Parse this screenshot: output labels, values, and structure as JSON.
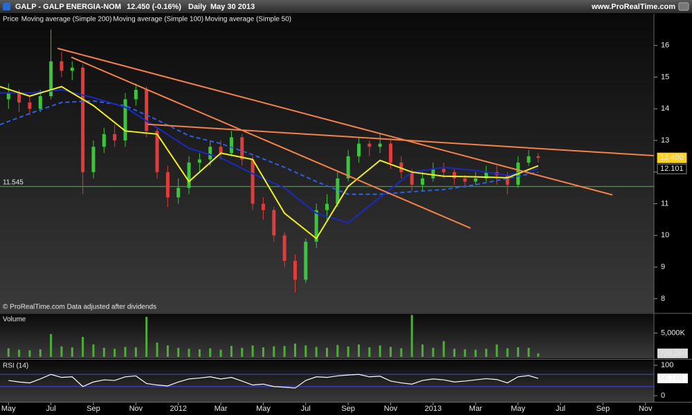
{
  "header": {
    "symbol": "GALP - GALP ENERGIA-NOM",
    "quote": "12.450 (-0.16%)",
    "period": "Daily",
    "date": "May 30 2013",
    "site": "www.ProRealTime.com"
  },
  "chart_data": [
    {
      "type": "candlestick",
      "legend_label": "Price",
      "note": "© ProRealTime.com  Data adjusted after dividends",
      "x": [
        0,
        0.5,
        1,
        1.5,
        2,
        2.5,
        3,
        3.5,
        4,
        4.5,
        5,
        5.5,
        6,
        6.5,
        7,
        7.5,
        8,
        8.5,
        9,
        9.5,
        10,
        10.5,
        11,
        11.5,
        12,
        12.5,
        13,
        13.5,
        14,
        14.5,
        15,
        15.5,
        16,
        16.5,
        17,
        17.5,
        18,
        18.5,
        19,
        19.5,
        20,
        20.5,
        21,
        21.5,
        22,
        22.5,
        23,
        23.5,
        24,
        24.5,
        24.95
      ],
      "open": [
        14.3,
        14.5,
        14.2,
        14.0,
        14.4,
        15.5,
        15.2,
        15.3,
        12.0,
        12.8,
        13.2,
        13.0,
        14.3,
        14.6,
        13.3,
        12.0,
        11.2,
        11.5,
        12.3,
        12.4,
        12.8,
        12.6,
        13.1,
        12.4,
        11.0,
        10.8,
        10.0,
        9.2,
        8.6,
        9.8,
        10.8,
        11.0,
        11.8,
        12.5,
        12.9,
        12.8,
        12.9,
        12.3,
        12.0,
        11.6,
        11.8,
        12.1,
        12.0,
        11.8,
        11.7,
        11.8,
        12.0,
        11.9,
        11.6,
        12.3,
        12.5
      ],
      "high": [
        14.8,
        14.6,
        14.4,
        14.6,
        16.5,
        15.8,
        15.5,
        15.4,
        13.0,
        13.4,
        13.5,
        14.5,
        14.8,
        14.7,
        13.4,
        12.2,
        11.8,
        12.5,
        12.6,
        13.0,
        13.0,
        13.3,
        13.2,
        12.5,
        11.2,
        10.9,
        10.1,
        9.4,
        9.9,
        11.0,
        11.3,
        12.0,
        12.7,
        13.1,
        13.0,
        13.2,
        13.0,
        12.5,
        12.1,
        12.0,
        12.3,
        12.3,
        12.1,
        11.9,
        12.0,
        12.2,
        12.2,
        12.0,
        12.5,
        12.7,
        12.6
      ],
      "low": [
        14.0,
        13.9,
        13.8,
        13.9,
        14.3,
        15.0,
        14.9,
        11.3,
        11.8,
        12.6,
        12.8,
        12.8,
        14.1,
        13.1,
        11.8,
        10.9,
        11.0,
        11.3,
        12.0,
        12.2,
        12.4,
        12.5,
        12.2,
        10.8,
        10.5,
        9.8,
        9.0,
        8.2,
        8.5,
        9.6,
        10.5,
        10.9,
        11.7,
        12.3,
        12.5,
        12.6,
        12.1,
        11.8,
        11.4,
        11.4,
        11.7,
        11.8,
        11.6,
        11.5,
        11.6,
        11.7,
        11.6,
        11.3,
        11.5,
        12.2,
        12.3
      ],
      "close": [
        14.5,
        14.2,
        14.0,
        14.4,
        15.5,
        15.2,
        15.3,
        12.0,
        12.8,
        13.2,
        13.0,
        14.3,
        14.6,
        13.3,
        12.0,
        11.2,
        11.5,
        12.3,
        12.4,
        12.8,
        12.6,
        13.1,
        12.4,
        11.0,
        10.8,
        10.0,
        9.2,
        8.6,
        9.8,
        10.8,
        11.0,
        11.8,
        12.5,
        12.9,
        12.8,
        12.9,
        12.3,
        12.0,
        11.6,
        11.8,
        12.1,
        12.0,
        11.8,
        11.7,
        11.8,
        12.0,
        11.9,
        11.6,
        12.3,
        12.5,
        12.45
      ],
      "up_color": "#3cc43c",
      "down_color": "#e03c3c",
      "series": [
        {
          "name": "Moving average (Simple 200)",
          "color": "#2d5fe8",
          "dashed": true,
          "x": [
            -0.4,
            1,
            2.5,
            4,
            5.5,
            7,
            8.5,
            10,
            11.5,
            13,
            14.5,
            16,
            17.5,
            19,
            20.5,
            22,
            23.5,
            24.95
          ],
          "values": [
            13.5,
            13.85,
            14.2,
            14.25,
            14.1,
            13.65,
            13.15,
            12.9,
            12.55,
            12.15,
            11.7,
            11.3,
            11.3,
            11.38,
            11.45,
            11.6,
            11.8,
            12.0
          ]
        },
        {
          "name": "Moving average (Simple 100)",
          "color": "#1a2ac0",
          "dashed": false,
          "x": [
            -0.4,
            1,
            2.5,
            4,
            5.5,
            7,
            8.5,
            10,
            11.5,
            13,
            14.5,
            16,
            17.5,
            19,
            20.5,
            22,
            23.5,
            24.95
          ],
          "values": [
            14.5,
            14.5,
            14.6,
            14.35,
            14.05,
            13.4,
            12.75,
            12.45,
            11.95,
            11.5,
            10.7,
            10.4,
            11.2,
            12.0,
            12.15,
            12.05,
            11.9,
            12.1
          ]
        },
        {
          "name": "Moving average (Simple 50)",
          "color": "#f0f020",
          "dashed": false,
          "x": [
            -0.4,
            1,
            2.5,
            4,
            5.5,
            7,
            8.5,
            10,
            11.5,
            13,
            14.5,
            16,
            17.5,
            19,
            20.5,
            22,
            23.5,
            24.95
          ],
          "values": [
            14.7,
            14.4,
            14.7,
            14.1,
            13.3,
            13.2,
            11.7,
            12.6,
            12.4,
            10.7,
            9.9,
            11.55,
            12.37,
            12.0,
            11.87,
            11.85,
            11.82,
            12.2
          ]
        }
      ],
      "trendline_color": "#f5824a",
      "trendlines": [
        {
          "x": [
            2.31,
            28.44
          ],
          "y": [
            15.91,
            11.28
          ]
        },
        {
          "x": [
            2.96,
            21.76
          ],
          "y": [
            15.63,
            10.23
          ]
        },
        {
          "x": [
            6.55,
            30.39
          ],
          "y": [
            13.51,
            12.52
          ]
        }
      ],
      "hline": {
        "value": 11.545,
        "color": "#20b020"
      },
      "last_price": {
        "value": 12.45,
        "label": "12.450"
      },
      "ma_last": {
        "value": 12.101,
        "label": "12.101"
      },
      "xlim": [
        -0.4,
        30.4
      ],
      "ylim": [
        7.56,
        17.0
      ],
      "yticks": [
        8,
        9,
        10,
        11,
        12,
        13,
        14,
        15,
        16
      ]
    },
    {
      "type": "bar",
      "title": "Volume",
      "color": "#4fae3a",
      "x": [
        0,
        0.5,
        1,
        1.5,
        2,
        2.5,
        3,
        3.5,
        4,
        4.5,
        5,
        5.5,
        6,
        6.5,
        7,
        7.5,
        8,
        8.5,
        9,
        9.5,
        10,
        10.5,
        11,
        11.5,
        12,
        12.5,
        13,
        13.5,
        14,
        14.5,
        15,
        15.5,
        16,
        16.5,
        17,
        17.5,
        18,
        18.5,
        19,
        19.5,
        20,
        20.5,
        21,
        21.5,
        22,
        22.5,
        23,
        23.5,
        24,
        24.5,
        24.95
      ],
      "values": [
        1800000,
        1500000,
        1400000,
        1600000,
        4800000,
        2200000,
        2000000,
        4200000,
        2600000,
        1900000,
        1700000,
        2100000,
        2000000,
        8400000,
        3000000,
        2400000,
        1900000,
        1700000,
        1600000,
        1800000,
        1500000,
        2300000,
        1900000,
        2400000,
        2000000,
        2200000,
        2300000,
        2800000,
        2400000,
        2100000,
        1900000,
        2500000,
        2200000,
        2600000,
        2000000,
        2400000,
        2100000,
        1800000,
        8800000,
        2600000,
        1900000,
        3300000,
        1700000,
        1600000,
        1500000,
        1700000,
        2600000,
        1800000,
        2000000,
        1900000,
        738266
      ],
      "last": {
        "value": 738266,
        "label": "738,266"
      },
      "xlim": [
        -0.4,
        30.4
      ],
      "ylim": [
        0,
        9000000
      ],
      "yticks": [
        {
          "value": 5000000,
          "label": "5,000K"
        }
      ]
    },
    {
      "type": "line",
      "title": "RSI (14)",
      "color": "#ffffff",
      "level_color": "#3a48ff",
      "x": [
        0,
        0.5,
        1,
        1.5,
        2,
        2.5,
        3,
        3.5,
        4,
        4.5,
        5,
        5.5,
        6,
        6.5,
        7,
        7.5,
        8,
        8.5,
        9,
        9.5,
        10,
        10.5,
        11,
        11.5,
        12,
        12.5,
        13,
        13.5,
        14,
        14.5,
        15,
        15.5,
        16,
        16.5,
        17,
        17.5,
        18,
        18.5,
        19,
        19.5,
        20,
        20.5,
        21,
        21.5,
        22,
        22.5,
        23,
        23.5,
        24,
        24.5,
        24.95
      ],
      "values": [
        50,
        45,
        42,
        55,
        70,
        60,
        62,
        30,
        45,
        52,
        50,
        62,
        65,
        40,
        35,
        32,
        45,
        55,
        58,
        62,
        55,
        60,
        48,
        35,
        38,
        30,
        28,
        25,
        50,
        62,
        60,
        65,
        68,
        70,
        62,
        64,
        48,
        42,
        38,
        50,
        55,
        52,
        45,
        48,
        52,
        56,
        53,
        42,
        62,
        66,
        56.748
      ],
      "levels": [
        30,
        70
      ],
      "xlim": [
        -0.4,
        30.4
      ],
      "ylim": [
        -18,
        116
      ],
      "yticks": [
        0,
        100
      ],
      "xticks": [
        {
          "value": 0,
          "label": "May"
        },
        {
          "value": 2,
          "label": "Jul"
        },
        {
          "value": 4,
          "label": "Sep"
        },
        {
          "value": 6,
          "label": "Nov"
        },
        {
          "value": 8,
          "label": "2012"
        },
        {
          "value": 10,
          "label": "Mar"
        },
        {
          "value": 12,
          "label": "May"
        },
        {
          "value": 14,
          "label": "Jul"
        },
        {
          "value": 16,
          "label": "Sep"
        },
        {
          "value": 18,
          "label": "Nov"
        },
        {
          "value": 20,
          "label": "2013"
        },
        {
          "value": 22,
          "label": "Mar"
        },
        {
          "value": 24,
          "label": "May"
        },
        {
          "value": 26,
          "label": "Jul"
        },
        {
          "value": 28,
          "label": "Sep"
        },
        {
          "value": 30,
          "label": "Nov"
        }
      ]
    }
  ]
}
